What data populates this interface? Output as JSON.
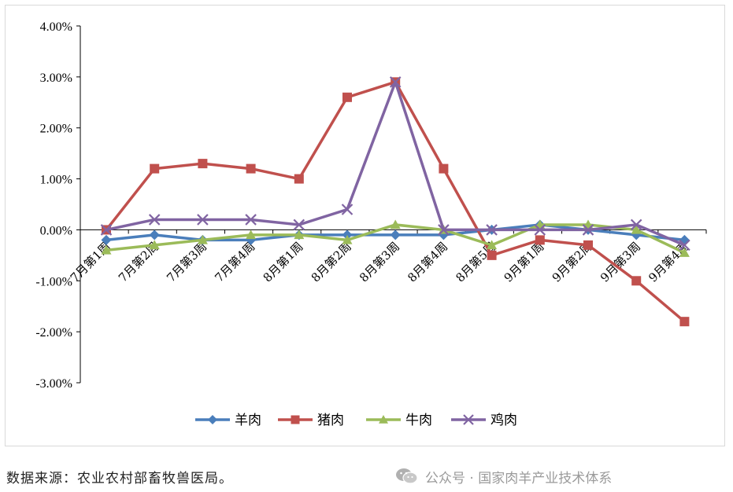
{
  "chart_data": {
    "type": "line",
    "title": "",
    "xlabel": "",
    "ylabel": "",
    "categories": [
      "7月第1周",
      "7月第2周",
      "7月第3周",
      "7月第4周",
      "8月第1周",
      "8月第2周",
      "8月第3周",
      "8月第4周",
      "8月第5周",
      "9月第1周",
      "9月第2周",
      "9月第3周",
      "9月第4周"
    ],
    "y_ticks": [
      "4.00%",
      "3.00%",
      "2.00%",
      "1.00%",
      "0.00%",
      "-1.00%",
      "-2.00%",
      "-3.00%"
    ],
    "ylim": [
      -3,
      4
    ],
    "grid": false,
    "legend_position": "bottom",
    "series": [
      {
        "name": "羊肉",
        "color": "#4a7ebb",
        "marker": "diamond",
        "values": [
          -0.2,
          -0.1,
          -0.2,
          -0.2,
          -0.1,
          -0.1,
          -0.1,
          -0.1,
          0.0,
          0.1,
          0.0,
          -0.1,
          -0.2
        ]
      },
      {
        "name": "猪肉",
        "color": "#c0504d",
        "marker": "square",
        "values": [
          0.0,
          1.2,
          1.3,
          1.2,
          1.0,
          2.6,
          2.9,
          1.2,
          -0.5,
          -0.2,
          -0.3,
          -1.0,
          -1.8
        ]
      },
      {
        "name": "牛肉",
        "color": "#9bbb59",
        "marker": "triangle",
        "values": [
          -0.4,
          -0.3,
          -0.2,
          -0.1,
          -0.1,
          -0.2,
          0.1,
          0.0,
          -0.3,
          0.1,
          0.1,
          0.0,
          -0.45
        ]
      },
      {
        "name": "鸡肉",
        "color": "#8064a2",
        "marker": "x",
        "values": [
          0.0,
          0.2,
          0.2,
          0.2,
          0.1,
          0.4,
          2.9,
          0.0,
          0.0,
          0.0,
          0.0,
          0.1,
          -0.3
        ]
      }
    ]
  },
  "source_note": "数据来源：农业农村部畜牧兽医局。",
  "watermark": {
    "icon": "wechat-icon",
    "text": "公众号 · 国家肉羊产业技术体系"
  }
}
